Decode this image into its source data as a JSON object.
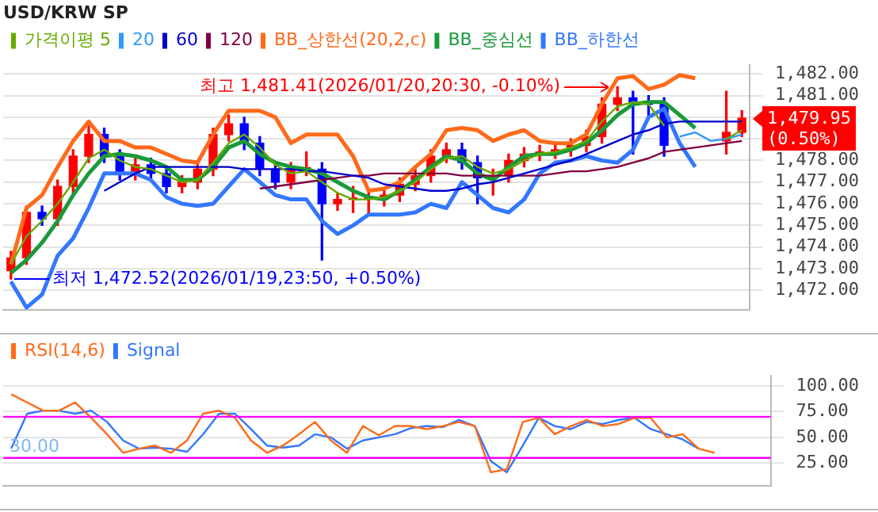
{
  "chart_data": [
    {
      "type": "candlestick",
      "title": "USD/KRW SP",
      "categories": [
        null,
        null,
        null,
        null,
        null,
        null,
        null,
        null,
        null,
        null,
        null,
        null,
        null,
        null,
        null,
        null,
        null,
        null,
        null,
        null,
        null,
        null,
        null,
        null,
        null,
        null,
        null,
        null,
        null,
        null,
        null,
        null,
        null,
        null,
        null,
        null,
        null,
        null,
        null,
        null,
        null,
        null,
        null,
        null,
        null,
        null,
        null,
        null
      ],
      "ohlc": [
        [
          1472.9,
          1473.8,
          1472.52,
          1473.5
        ],
        [
          1473.5,
          1475.9,
          1473.2,
          1475.6
        ],
        [
          1475.6,
          1475.9,
          1475.0,
          1475.3
        ],
        [
          1475.3,
          1477.1,
          1475.0,
          1476.8
        ],
        [
          1476.8,
          1478.5,
          1476.5,
          1478.2
        ],
        [
          1478.2,
          1479.6,
          1477.9,
          1479.2
        ],
        [
          1479.2,
          1479.5,
          1477.9,
          1478.2
        ],
        [
          1478.2,
          1478.5,
          1477.1,
          1477.4
        ],
        [
          1477.4,
          1478.1,
          1477.1,
          1477.8
        ],
        [
          1477.8,
          1478.1,
          1477.1,
          1477.4
        ],
        [
          1477.4,
          1477.7,
          1476.5,
          1476.8
        ],
        [
          1476.8,
          1477.3,
          1476.5,
          1477.0
        ],
        [
          1477.0,
          1477.9,
          1476.7,
          1477.6
        ],
        [
          1477.6,
          1479.5,
          1477.3,
          1479.2
        ],
        [
          1479.2,
          1480.1,
          1478.9,
          1479.7
        ],
        [
          1479.7,
          1480.0,
          1478.5,
          1478.8
        ],
        [
          1478.8,
          1479.1,
          1477.3,
          1477.6
        ],
        [
          1477.6,
          1477.9,
          1476.7,
          1477.0
        ],
        [
          1477.0,
          1477.9,
          1476.7,
          1477.6
        ],
        [
          1477.6,
          1478.4,
          1477.3,
          1477.6
        ],
        [
          1477.6,
          1477.9,
          1473.4,
          1476.0
        ],
        [
          1476.0,
          1476.5,
          1475.7,
          1476.2
        ],
        [
          1476.2,
          1476.8,
          1475.6,
          1476.2
        ],
        [
          1476.2,
          1476.5,
          1475.5,
          1476.2
        ],
        [
          1476.2,
          1476.7,
          1475.9,
          1476.4
        ],
        [
          1476.4,
          1477.2,
          1476.1,
          1476.9
        ],
        [
          1476.9,
          1477.6,
          1476.6,
          1477.3
        ],
        [
          1477.3,
          1478.5,
          1477.0,
          1478.2
        ],
        [
          1478.2,
          1478.8,
          1477.9,
          1478.5
        ],
        [
          1478.5,
          1478.8,
          1477.6,
          1477.9
        ],
        [
          1477.9,
          1478.2,
          1476.0,
          1477.2
        ],
        [
          1477.2,
          1477.6,
          1476.4,
          1477.3
        ],
        [
          1477.3,
          1478.3,
          1477.0,
          1478.0
        ],
        [
          1478.0,
          1478.6,
          1477.7,
          1478.3
        ],
        [
          1478.3,
          1478.7,
          1478.0,
          1478.4
        ],
        [
          1478.4,
          1478.8,
          1478.1,
          1478.5
        ],
        [
          1478.5,
          1479.0,
          1478.2,
          1478.7
        ],
        [
          1478.7,
          1479.4,
          1478.4,
          1479.1
        ],
        [
          1479.1,
          1480.9,
          1478.8,
          1480.6
        ],
        [
          1480.6,
          1481.41,
          1480.3,
          1480.9
        ],
        [
          1480.9,
          1481.2,
          1478.3,
          1480.7
        ],
        [
          1480.7,
          1481.0,
          1480.0,
          1480.6
        ],
        [
          1480.6,
          1480.9,
          1478.2,
          1478.7
        ],
        null,
        null,
        null,
        [
          1478.9,
          1481.2,
          1478.3,
          1479.3
        ],
        [
          1479.3,
          1480.3,
          1479.1,
          1479.95
        ]
      ],
      "colors": [
        "#ff0000",
        "#ff0000",
        "#0000ff",
        "#ff0000",
        "#ff0000",
        "#ff0000",
        "#0000ff",
        "#0000ff",
        "#ff0000",
        "#0000ff",
        "#0000ff",
        "#ff0000",
        "#ff0000",
        "#ff0000",
        "#ff0000",
        "#0000ff",
        "#0000ff",
        "#0000ff",
        "#ff0000",
        "#ff0000",
        "#0000ff",
        "#ff0000",
        "#ff0000",
        "#ff0000",
        "#ff0000",
        "#ff0000",
        "#ff0000",
        "#ff0000",
        "#ff0000",
        "#0000ff",
        "#0000ff",
        "#ff0000",
        "#ff0000",
        "#ff0000",
        "#ff0000",
        "#ff0000",
        "#ff0000",
        "#ff0000",
        "#ff0000",
        "#ff0000",
        "#0000ff",
        "#0000ff",
        "#0000ff",
        null,
        null,
        null,
        "#ff0000",
        "#ff0000"
      ],
      "series": [
        {
          "type": "line",
          "name": "가격이평 5",
          "color": "#66aa00",
          "values": [
            1473.2,
            1474.5,
            1475.2,
            1476.0,
            1477.0,
            1478.1,
            1478.5,
            1478.0,
            1477.7,
            1477.6,
            1477.3,
            1477.0,
            1477.1,
            1477.9,
            1478.8,
            1479.2,
            1478.6,
            1477.8,
            1477.4,
            1477.5,
            1477.0,
            1476.5,
            1476.2,
            1476.2,
            1476.3,
            1476.6,
            1477.0,
            1477.6,
            1478.1,
            1478.2,
            1477.7,
            1477.4,
            1477.6,
            1478.0,
            1478.3,
            1478.4,
            1478.6,
            1478.9,
            1479.8,
            1480.5,
            1480.7,
            1480.6,
            1479.6,
            null,
            null,
            null,
            1479.0,
            1479.4
          ]
        },
        {
          "type": "line",
          "name": "20",
          "color": "#3399ff",
          "values": [
            null,
            null,
            null,
            null,
            null,
            null,
            null,
            null,
            null,
            null,
            null,
            null,
            null,
            null,
            null,
            null,
            null,
            null,
            null,
            null,
            null,
            null,
            null,
            null,
            null,
            null,
            null,
            null,
            null,
            null,
            null,
            null,
            null,
            null,
            null,
            null,
            null,
            null,
            null,
            null,
            null,
            null,
            null,
            1479.1,
            1479.3,
            1478.9,
            1479.0,
            1479.2
          ]
        },
        {
          "type": "line",
          "name": "60",
          "color": "#0000cc",
          "values": [
            null,
            null,
            null,
            null,
            null,
            null,
            1476.6,
            1477.0,
            1477.4,
            1477.7,
            1477.7,
            1477.7,
            1477.7,
            1477.7,
            1477.7,
            1477.6,
            1477.6,
            1477.6,
            1477.6,
            1477.5,
            1477.5,
            1477.4,
            1477.3,
            1477.2,
            1476.9,
            1476.8,
            1476.7,
            1476.6,
            1476.6,
            1476.7,
            1476.9,
            1477.0,
            1477.2,
            1477.4,
            1477.6,
            1477.8,
            1478.0,
            1478.3,
            1478.6,
            1478.9,
            1479.2,
            1479.4,
            1479.7,
            1479.8,
            1479.8,
            1479.8,
            1479.8,
            1479.8
          ]
        },
        {
          "type": "line",
          "name": "120",
          "color": "#800040",
          "values": [
            null,
            null,
            null,
            null,
            null,
            null,
            null,
            null,
            null,
            null,
            null,
            null,
            null,
            null,
            null,
            null,
            1476.7,
            1476.8,
            1476.9,
            1477.0,
            1477.1,
            1477.2,
            1477.3,
            1477.3,
            1477.4,
            1477.4,
            1477.4,
            1477.4,
            1477.4,
            1477.3,
            1477.3,
            1477.3,
            1477.3,
            1477.3,
            1477.3,
            1477.4,
            1477.5,
            1477.5,
            1477.6,
            1477.7,
            1477.9,
            1478.1,
            1478.4,
            1478.5,
            1478.6,
            1478.7,
            1478.8,
            1478.9
          ]
        },
        {
          "type": "line",
          "name": "BB_상한선(20,2,c)",
          "color": "#ff6a1a",
          "values": [
            1473.2,
            1475.8,
            1476.4,
            1477.7,
            1478.9,
            1479.8,
            1478.9,
            1478.9,
            1478.6,
            1478.6,
            1478.3,
            1478.0,
            1477.9,
            1479.2,
            1480.3,
            1480.3,
            1480.3,
            1480.0,
            1478.8,
            1479.2,
            1479.2,
            1479.2,
            1478.2,
            1476.6,
            1476.7,
            1477.0,
            1477.7,
            1478.3,
            1479.4,
            1479.5,
            1479.4,
            1478.9,
            1479.2,
            1479.4,
            1478.9,
            1478.8,
            1478.8,
            1479.2,
            1480.6,
            1481.8,
            1481.9,
            1481.3,
            1481.5,
            1481.95,
            1481.8,
            null,
            null,
            null
          ]
        },
        {
          "type": "line",
          "name": "BB_중심선",
          "color": "#1a9a3a",
          "values": [
            1472.8,
            1473.4,
            1474.2,
            1475.2,
            1476.4,
            1477.4,
            1478.2,
            1478.3,
            1478.2,
            1478.0,
            1477.7,
            1477.1,
            1477.1,
            1477.7,
            1478.6,
            1478.9,
            1478.3,
            1477.9,
            1477.7,
            1477.6,
            1477.4,
            1477.0,
            1476.6,
            1476.3,
            1476.2,
            1476.6,
            1477.1,
            1477.7,
            1478.2,
            1478.0,
            1477.4,
            1477.1,
            1477.7,
            1478.2,
            1478.3,
            1478.3,
            1478.5,
            1478.8,
            1479.4,
            1480.1,
            1480.6,
            1480.7,
            1480.7,
            1480.1,
            1479.5,
            null,
            null,
            null
          ]
        },
        {
          "type": "line",
          "name": "BB_하한선",
          "color": "#3377ff",
          "values": [
            1472.4,
            1471.2,
            1471.8,
            1473.6,
            1474.4,
            1475.8,
            1477.4,
            1477.4,
            1477.4,
            1477.1,
            1476.3,
            1476.0,
            1475.9,
            1476.0,
            1476.8,
            1477.6,
            1477.0,
            1476.4,
            1476.2,
            1476.2,
            1475.2,
            1474.6,
            1475.0,
            1475.5,
            1475.5,
            1475.5,
            1475.6,
            1476.0,
            1475.8,
            1477.0,
            1476.4,
            1475.8,
            1475.6,
            1476.2,
            1477.4,
            1477.9,
            1478.0,
            1478.2,
            1478.0,
            1477.9,
            1478.5,
            1480.0,
            1480.4,
            1478.8,
            1477.7,
            null,
            null,
            null
          ]
        }
      ],
      "ylim": [
        1471.1,
        1482.4
      ],
      "yticks": [
        {
          "value": 1472,
          "label": "1,472.00"
        },
        {
          "value": 1473,
          "label": "1,473.00"
        },
        {
          "value": 1474,
          "label": "1,474.00"
        },
        {
          "value": 1475,
          "label": "1,475.00"
        },
        {
          "value": 1476,
          "label": "1,476.00"
        },
        {
          "value": 1477,
          "label": "1,477.00"
        },
        {
          "value": 1478,
          "label": "1,478.00"
        },
        {
          "value": 1479,
          "label": null
        },
        {
          "value": 1480,
          "label": null
        },
        {
          "value": 1481,
          "label": "1,481.00"
        },
        {
          "value": 1482,
          "label": "1,482.00"
        }
      ],
      "annotations": [
        "최고 1,481.41(2026/01/20,20:30, -0.10%)",
        "최저 1,472.52(2026/01/19,23:50, +0.50%)",
        "1,479.95 (0.50%)"
      ],
      "grid": "y",
      "legend": "top left",
      "tick_labels": "y",
      "marker": "none"
    },
    {
      "type": "line",
      "categories": [
        null,
        null,
        null,
        null,
        null,
        null,
        null,
        null,
        null,
        null,
        null,
        null,
        null,
        null,
        null,
        null,
        null,
        null,
        null,
        null,
        null,
        null,
        null,
        null,
        null,
        null,
        null,
        null,
        null,
        null,
        null,
        null,
        null,
        null,
        null,
        null,
        null,
        null,
        null,
        null,
        null,
        null,
        null,
        null,
        null,
        null,
        null,
        null
      ],
      "series": [
        {
          "name": "RSI(14,6)",
          "color": "#ff6a1a",
          "values": [
            92,
            84,
            76,
            76,
            84,
            69,
            53,
            35,
            39,
            42,
            35,
            47,
            73,
            76,
            69,
            47,
            35,
            42,
            53,
            65,
            47,
            35,
            61,
            52,
            61,
            61,
            58,
            61,
            65,
            61,
            16,
            19,
            65,
            69,
            53,
            61,
            67,
            61,
            63,
            69,
            69,
            50,
            53,
            39,
            35,
            null,
            null,
            null
          ]
        },
        {
          "name": "Signal",
          "color": "#3377ff",
          "values": [
            39,
            73,
            76,
            76,
            73,
            76,
            65,
            47,
            39,
            40,
            39,
            36,
            53,
            73,
            73,
            58,
            42,
            40,
            42,
            53,
            50,
            39,
            47,
            50,
            53,
            59,
            61,
            60,
            67,
            61,
            27,
            16,
            42,
            69,
            61,
            58,
            65,
            63,
            67,
            69,
            58,
            53,
            48,
            39,
            null,
            null,
            null,
            null
          ]
        }
      ],
      "ylim": [
        3,
        110
      ],
      "yticks": [
        {
          "value": 25,
          "label": "25.00"
        },
        {
          "value": 50,
          "label": "50.00"
        },
        {
          "value": 75,
          "label": "75.00"
        },
        {
          "value": 100,
          "label": "100.00"
        }
      ],
      "ref_lines": [
        {
          "axis": "y",
          "value": 70,
          "color": "#ff00ff"
        },
        {
          "axis": "y",
          "value": 30,
          "color": "#ff00ff"
        }
      ],
      "annotations": [
        "30.00"
      ],
      "grid": "y",
      "legend": "top left",
      "tick_labels": "y",
      "marker": "none"
    }
  ]
}
